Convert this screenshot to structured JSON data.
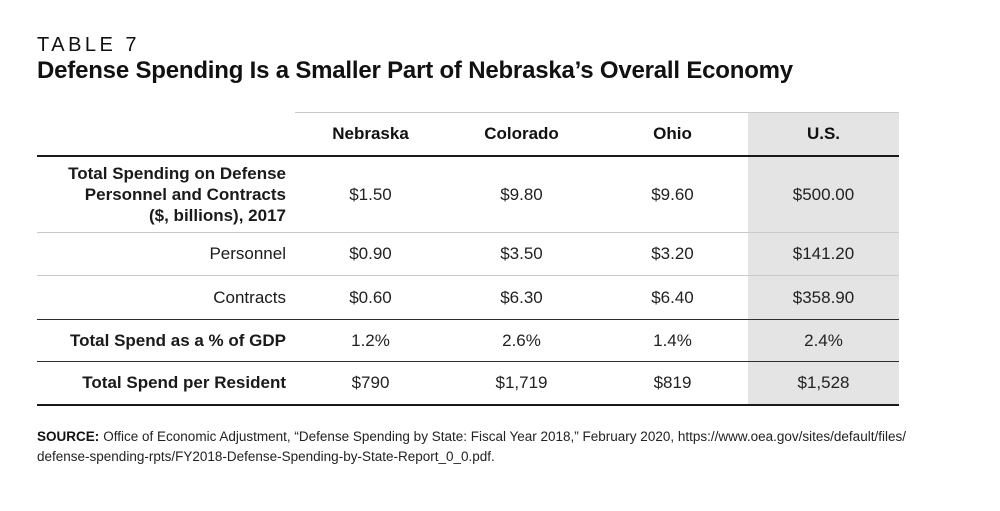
{
  "page": {
    "table_label": "TABLE 7",
    "title": "Defense Spending Is a Smaller Part of Nebraska’s Overall Economy"
  },
  "table": {
    "columns": [
      "Nebraska",
      "Colorado",
      "Ohio",
      "U.S."
    ],
    "highlighted_column": "U.S.",
    "highlight_color": "#e4e4e4",
    "rows": [
      {
        "label": "Total Spending on Defense Personnel and Contracts ($, billions), 2017",
        "label_lines": [
          "Total Spending on Defense",
          "Personnel and Contracts",
          "($, billions), 2017"
        ],
        "values": [
          "$1.50",
          "$9.80",
          "$9.60",
          "$500.00"
        ]
      },
      {
        "label": "Personnel",
        "values": [
          "$0.90",
          "$3.50",
          "$3.20",
          "$141.20"
        ]
      },
      {
        "label": "Contracts",
        "values": [
          "$0.60",
          "$6.30",
          "$6.40",
          "$358.90"
        ]
      },
      {
        "label": "Total Spend as a % of GDP",
        "values": [
          "1.2%",
          "2.6%",
          "1.4%",
          "2.4%"
        ]
      },
      {
        "label": "Total Spend per Resident",
        "values": [
          "$790",
          "$1,719",
          "$819",
          "$1,528"
        ]
      }
    ]
  },
  "source": {
    "prefix": "SOURCE:",
    "line1": "Office of Economic Adjustment, “Defense Spending by State: Fiscal Year 2018,” February 2020, https://www.oea.gov/sites/default/files/",
    "line2": "defense-spending-rpts/FY2018-Defense-Spending-by-State-Report_0_0.pdf."
  },
  "chart_data": {
    "type": "table",
    "title": "Defense Spending Is a Smaller Part of Nebraska’s Overall Economy",
    "columns": [
      "Nebraska",
      "Colorado",
      "Ohio",
      "U.S."
    ],
    "row_labels": [
      "Total Spending on Defense Personnel and Contracts ($, billions), 2017",
      "Personnel",
      "Contracts",
      "Total Spend as a % of GDP",
      "Total Spend per Resident"
    ],
    "values": [
      [
        1.5,
        9.8,
        9.6,
        500.0
      ],
      [
        0.9,
        3.5,
        3.2,
        141.2
      ],
      [
        0.6,
        6.3,
        6.4,
        358.9
      ],
      [
        "1.2%",
        "2.6%",
        "1.4%",
        "2.4%"
      ],
      [
        790,
        1719,
        819,
        1528
      ]
    ]
  }
}
